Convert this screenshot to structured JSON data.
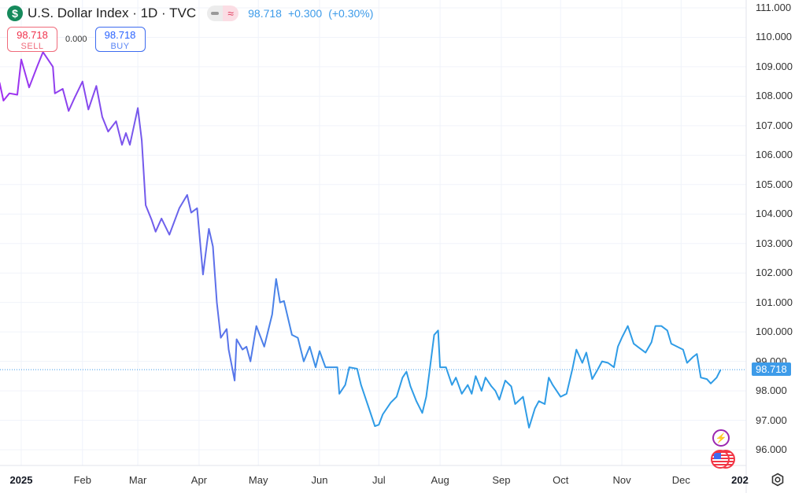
{
  "header": {
    "logo_glyph": "$",
    "title": "U.S. Dollar Index · 1D · TVC",
    "alt_glyph": "≈",
    "last": "98.718",
    "change": "+0.300",
    "change_pct": "(+0.30%)"
  },
  "trade": {
    "sell_price": "98.718",
    "sell_label": "SELL",
    "spread": "0.000",
    "buy_price": "98.718",
    "buy_label": "BUY"
  },
  "price_tag": "98.718",
  "year_label": "202",
  "colors": {
    "start": "#a22ef0",
    "end": "#2f9ce6",
    "accent": "#3d9be9"
  },
  "chart_data": {
    "type": "line",
    "title": "U.S. Dollar Index · 1D · TVC",
    "x_unit": "day of 2025 (0 = Jan 1)",
    "x_ticks": [
      {
        "label": "2025",
        "day": 0,
        "bold": true
      },
      {
        "label": "Feb",
        "day": 31
      },
      {
        "label": "Mar",
        "day": 59
      },
      {
        "label": "Apr",
        "day": 90
      },
      {
        "label": "May",
        "day": 120
      },
      {
        "label": "Jun",
        "day": 151
      },
      {
        "label": "Jul",
        "day": 181
      },
      {
        "label": "Aug",
        "day": 212
      },
      {
        "label": "Sep",
        "day": 243
      },
      {
        "label": "Oct",
        "day": 273
      },
      {
        "label": "Nov",
        "day": 304
      },
      {
        "label": "Dec",
        "day": 334
      }
    ],
    "y_ticks": [
      "111.000",
      "110.000",
      "109.000",
      "108.000",
      "107.000",
      "106.000",
      "105.000",
      "104.000",
      "103.000",
      "102.000",
      "101.000",
      "100.000",
      "99.000",
      "98.000",
      "97.000",
      "96.000"
    ],
    "ylim": [
      96,
      111
    ],
    "last_value": 98.718,
    "points": [
      [
        -11,
        108.47
      ],
      [
        -9,
        107.85
      ],
      [
        -6,
        108.1
      ],
      [
        -2,
        108.05
      ],
      [
        0,
        109.25
      ],
      [
        4,
        108.3
      ],
      [
        8,
        109.0
      ],
      [
        11,
        109.5
      ],
      [
        16,
        109.0
      ],
      [
        17,
        108.1
      ],
      [
        21,
        108.25
      ],
      [
        24,
        107.5
      ],
      [
        27,
        107.95
      ],
      [
        31,
        108.5
      ],
      [
        34,
        107.55
      ],
      [
        38,
        108.35
      ],
      [
        41,
        107.3
      ],
      [
        44,
        106.8
      ],
      [
        48,
        107.15
      ],
      [
        51,
        106.35
      ],
      [
        53,
        106.75
      ],
      [
        55,
        106.35
      ],
      [
        59,
        107.6
      ],
      [
        61,
        106.5
      ],
      [
        63,
        104.3
      ],
      [
        66,
        103.8
      ],
      [
        68,
        103.4
      ],
      [
        71,
        103.85
      ],
      [
        75,
        103.3
      ],
      [
        80,
        104.2
      ],
      [
        84,
        104.65
      ],
      [
        86,
        104.05
      ],
      [
        89,
        104.2
      ],
      [
        92,
        101.95
      ],
      [
        94,
        103.0
      ],
      [
        95,
        103.5
      ],
      [
        97,
        102.9
      ],
      [
        99,
        101.0
      ],
      [
        101,
        99.8
      ],
      [
        104,
        100.1
      ],
      [
        105,
        99.4
      ],
      [
        108,
        98.35
      ],
      [
        109,
        99.75
      ],
      [
        112,
        99.4
      ],
      [
        114,
        99.5
      ],
      [
        116,
        99.0
      ],
      [
        119,
        100.2
      ],
      [
        123,
        99.5
      ],
      [
        127,
        100.6
      ],
      [
        129,
        101.8
      ],
      [
        131,
        101.0
      ],
      [
        133,
        101.05
      ],
      [
        137,
        99.9
      ],
      [
        140,
        99.8
      ],
      [
        143,
        99.0
      ],
      [
        146,
        99.5
      ],
      [
        149,
        98.8
      ],
      [
        151,
        99.35
      ],
      [
        154,
        98.8
      ],
      [
        157,
        98.8
      ],
      [
        160,
        98.8
      ],
      [
        161,
        97.9
      ],
      [
        164,
        98.2
      ],
      [
        166,
        98.8
      ],
      [
        170,
        98.75
      ],
      [
        172,
        98.2
      ],
      [
        176,
        97.4
      ],
      [
        179,
        96.8
      ],
      [
        181,
        96.85
      ],
      [
        183,
        97.2
      ],
      [
        187,
        97.6
      ],
      [
        190,
        97.8
      ],
      [
        193,
        98.45
      ],
      [
        195,
        98.65
      ],
      [
        197,
        98.15
      ],
      [
        200,
        97.65
      ],
      [
        203,
        97.25
      ],
      [
        205,
        97.8
      ],
      [
        207,
        98.85
      ],
      [
        209,
        99.9
      ],
      [
        211,
        100.05
      ],
      [
        212,
        98.8
      ],
      [
        215,
        98.8
      ],
      [
        218,
        98.2
      ],
      [
        220,
        98.45
      ],
      [
        223,
        97.9
      ],
      [
        226,
        98.2
      ],
      [
        228,
        97.9
      ],
      [
        230,
        98.5
      ],
      [
        233,
        98.0
      ],
      [
        235,
        98.45
      ],
      [
        238,
        98.15
      ],
      [
        240,
        98.0
      ],
      [
        242,
        97.7
      ],
      [
        245,
        98.35
      ],
      [
        248,
        98.15
      ],
      [
        250,
        97.55
      ],
      [
        254,
        97.8
      ],
      [
        257,
        96.75
      ],
      [
        260,
        97.4
      ],
      [
        262,
        97.65
      ],
      [
        265,
        97.55
      ],
      [
        267,
        98.45
      ],
      [
        269,
        98.2
      ],
      [
        273,
        97.8
      ],
      [
        276,
        97.9
      ],
      [
        279,
        98.75
      ],
      [
        281,
        99.4
      ],
      [
        284,
        98.95
      ],
      [
        286,
        99.3
      ],
      [
        289,
        98.4
      ],
      [
        292,
        98.75
      ],
      [
        294,
        99.0
      ],
      [
        297,
        98.95
      ],
      [
        300,
        98.8
      ],
      [
        302,
        99.5
      ],
      [
        304,
        99.8
      ],
      [
        307,
        100.2
      ],
      [
        310,
        99.6
      ],
      [
        312,
        99.5
      ],
      [
        316,
        99.3
      ],
      [
        319,
        99.65
      ],
      [
        321,
        100.2
      ],
      [
        324,
        100.2
      ],
      [
        327,
        100.05
      ],
      [
        329,
        99.6
      ],
      [
        332,
        99.5
      ],
      [
        335,
        99.4
      ],
      [
        337,
        98.95
      ],
      [
        340,
        99.15
      ],
      [
        342,
        99.25
      ],
      [
        344,
        98.45
      ],
      [
        347,
        98.4
      ],
      [
        349,
        98.25
      ],
      [
        352,
        98.45
      ],
      [
        354,
        98.718
      ]
    ]
  }
}
